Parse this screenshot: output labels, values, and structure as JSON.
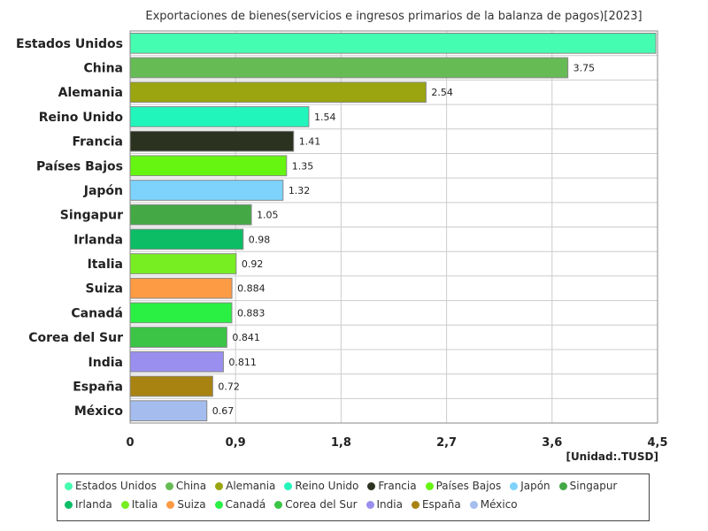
{
  "chart_data": {
    "type": "bar",
    "orientation": "horizontal",
    "title": "Exportaciones de bienes(servicios e ingresos primarios de la balanza de pagos)[2023]",
    "unit": "[Unidad:.TUSD]",
    "categories": [
      "Estados Unidos",
      "China",
      "Alemania",
      "Reino Unido",
      "Francia",
      "Países Bajos",
      "Japón",
      "Singapur",
      "Irlanda",
      "Italia",
      "Suiza",
      "Canadá",
      "Corea del Sur",
      "India",
      "España",
      "México"
    ],
    "values": [
      4.5,
      3.75,
      2.54,
      1.54,
      1.41,
      1.35,
      1.32,
      1.05,
      0.98,
      0.92,
      0.884,
      0.883,
      0.841,
      0.811,
      0.72,
      0.67
    ],
    "value_labels": [
      "",
      "3.75",
      "2.54",
      "1.54",
      "1.41",
      "1.35",
      "1.32",
      "1.05",
      "0.98",
      "0.92",
      "0.884",
      "0.883",
      "0.841",
      "0.811",
      "0.72",
      "0.67"
    ],
    "colors": [
      "#45fdb0",
      "#66bb55",
      "#9aa50f",
      "#22f5bb",
      "#2b3320",
      "#66f511",
      "#7dd3fb",
      "#44a845",
      "#0cbd65",
      "#77ee22",
      "#fd9a44",
      "#2af044",
      "#3bc446",
      "#9a8fee",
      "#a88312",
      "#a5bdee"
    ],
    "xlim": [
      0,
      4.5
    ],
    "xticks": [
      "0",
      "0,9",
      "1,8",
      "2,7",
      "3,6",
      "4,5"
    ],
    "xtick_values": [
      0,
      0.9,
      1.8,
      2.7,
      3.6,
      4.5
    ],
    "grid": true,
    "legend_position": "bottom"
  }
}
